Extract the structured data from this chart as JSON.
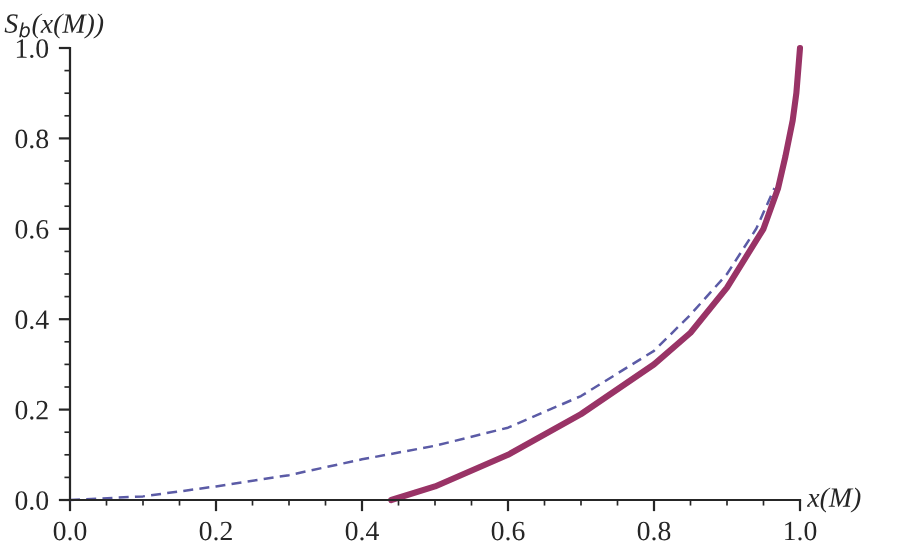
{
  "chart_data": {
    "type": "line",
    "xlabel": "x(M)",
    "ylabel": "S$_{b}$(x(M))",
    "xlim": [
      0,
      1
    ],
    "ylim": [
      0,
      1
    ],
    "xticks": [
      {
        "value": 0,
        "label": "0.0"
      },
      {
        "value": 0.2,
        "label": "0.2"
      },
      {
        "value": 0.4,
        "label": "0.4"
      },
      {
        "value": 0.6,
        "label": "0.6"
      },
      {
        "value": 0.8,
        "label": "0.8"
      },
      {
        "value": 1,
        "label": "1.0"
      }
    ],
    "yticks": [
      {
        "value": 0,
        "label": "0.0"
      },
      {
        "value": 0.2,
        "label": "0.2"
      },
      {
        "value": 0.4,
        "label": "0.4"
      },
      {
        "value": 0.6,
        "label": "0.6"
      },
      {
        "value": 0.8,
        "label": "0.8"
      },
      {
        "value": 1,
        "label": "1.0"
      }
    ],
    "grid": false,
    "legend": false,
    "series": [
      {
        "color": "#5b5ba6",
        "line_style": "dashed",
        "x": [
          0,
          0.1,
          0.2,
          0.3,
          0.4,
          0.5,
          0.6,
          0.7,
          0.8,
          0.85,
          0.9,
          0.94,
          0.965
        ],
        "values": [
          0,
          0.008,
          0.03,
          0.055,
          0.09,
          0.12,
          0.16,
          0.23,
          0.33,
          0.41,
          0.5,
          0.6,
          0.69
        ]
      },
      {
        "color": "#993366",
        "line_style": "solid",
        "x": [
          0.44,
          0.5,
          0.6,
          0.7,
          0.8,
          0.85,
          0.9,
          0.95,
          0.97,
          0.98,
          0.99,
          0.995,
          1.0
        ],
        "values": [
          0,
          0.03,
          0.1,
          0.19,
          0.3,
          0.37,
          0.47,
          0.6,
          0.69,
          0.76,
          0.84,
          0.9,
          1.0
        ]
      }
    ]
  }
}
